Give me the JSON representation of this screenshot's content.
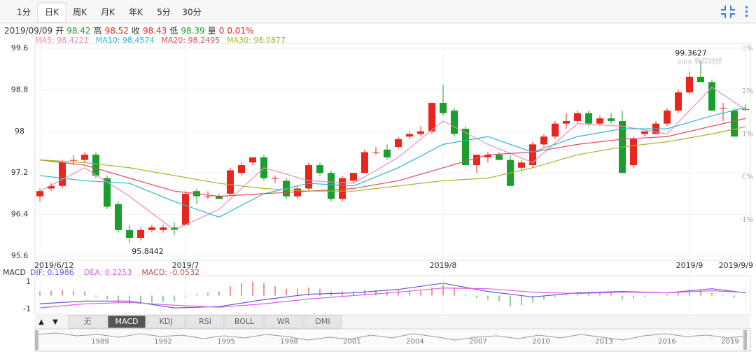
{
  "tabs": {
    "items": [
      "1分",
      "日K",
      "周K",
      "月K",
      "年K",
      "5分",
      "30分"
    ],
    "active": 1
  },
  "quote": {
    "date": "2019/09/09",
    "fields": [
      {
        "label": "开",
        "value": 98.42,
        "color": "#1a9e2c"
      },
      {
        "label": "高",
        "value": 98.52,
        "color": "#e8261d"
      },
      {
        "label": "收",
        "value": 98.43,
        "color": "#e8261d"
      },
      {
        "label": "低",
        "value": 98.39,
        "color": "#1a9e2c"
      },
      {
        "label": "量",
        "value": 0,
        "color": "#b03030"
      }
    ],
    "change": "0.01%",
    "change_color": "#e8261d"
  },
  "chart_data": {
    "type": "candlestick",
    "categories": [
      "2019/6/12",
      null,
      null,
      null,
      null,
      null,
      null,
      null,
      null,
      null,
      null,
      null,
      null,
      "2019/7",
      null,
      null,
      null,
      null,
      null,
      null,
      null,
      null,
      null,
      null,
      null,
      null,
      null,
      null,
      null,
      null,
      null,
      null,
      null,
      null,
      null,
      null,
      "2019/8",
      null,
      null,
      null,
      null,
      null,
      null,
      null,
      null,
      null,
      null,
      null,
      null,
      null,
      null,
      null,
      null,
      null,
      null,
      null,
      null,
      null,
      "2019/9",
      null,
      null,
      null,
      null,
      "2019/9/9"
    ],
    "open": [
      96.75,
      96.9,
      96.95,
      97.45,
      97.45,
      97.55,
      97.1,
      96.6,
      96.1,
      95.95,
      96.1,
      96.1,
      96.15,
      96.2,
      96.85,
      96.75,
      96.75,
      96.8,
      97.2,
      97.4,
      97.5,
      97.1,
      97.05,
      96.75,
      96.9,
      97.35,
      97.2,
      96.7,
      97.05,
      97.2,
      97.6,
      97.65,
      97.7,
      97.9,
      97.95,
      98.0,
      98.55,
      98.4,
      98.05,
      97.35,
      97.5,
      97.55,
      97.45,
      97.3,
      97.35,
      97.75,
      97.9,
      98.15,
      98.2,
      98.35,
      98.15,
      98.25,
      98.2,
      97.35,
      97.95,
      97.95,
      98.15,
      98.4,
      98.75,
      99.05,
      98.95,
      98.45,
      98.4,
      98.42
    ],
    "high": [
      96.9,
      97.0,
      97.45,
      97.55,
      97.6,
      97.6,
      97.15,
      96.65,
      96.2,
      96.15,
      96.2,
      96.2,
      96.25,
      96.85,
      96.9,
      96.85,
      96.8,
      97.3,
      97.4,
      97.5,
      97.55,
      97.15,
      97.1,
      96.95,
      97.4,
      97.4,
      97.25,
      97.15,
      97.2,
      97.65,
      97.7,
      97.75,
      97.9,
      98.0,
      98.1,
      98.55,
      98.9,
      98.45,
      98.1,
      97.55,
      97.6,
      97.6,
      97.55,
      97.45,
      97.8,
      97.95,
      98.2,
      98.35,
      98.4,
      98.4,
      98.3,
      98.35,
      98.4,
      97.9,
      98.0,
      98.2,
      98.45,
      98.8,
      99.15,
      99.3627,
      99.0,
      98.55,
      98.45,
      98.52
    ],
    "low": [
      96.65,
      96.85,
      96.9,
      97.35,
      97.4,
      97.1,
      96.5,
      96.05,
      95.8442,
      95.9,
      96.05,
      96.05,
      96.0,
      96.2,
      96.6,
      96.7,
      96.7,
      96.75,
      97.15,
      97.35,
      97.05,
      97.0,
      96.7,
      96.7,
      96.85,
      97.15,
      96.65,
      96.65,
      97.0,
      97.2,
      97.55,
      97.45,
      97.65,
      97.85,
      97.9,
      97.95,
      98.3,
      97.9,
      97.35,
      97.2,
      97.4,
      97.45,
      96.95,
      97.25,
      97.3,
      97.7,
      97.85,
      98.05,
      98.15,
      98.1,
      98.1,
      98.15,
      97.2,
      97.3,
      97.9,
      97.95,
      98.1,
      98.35,
      98.7,
      98.95,
      98.4,
      98.2,
      97.9,
      98.39
    ],
    "close": [
      96.85,
      96.95,
      97.4,
      97.45,
      97.55,
      97.15,
      96.55,
      96.1,
      95.95,
      96.1,
      96.15,
      96.15,
      96.1,
      96.8,
      96.75,
      96.75,
      96.7,
      97.25,
      97.35,
      97.5,
      97.1,
      97.1,
      96.75,
      96.9,
      97.35,
      97.2,
      96.7,
      97.1,
      97.2,
      97.6,
      97.6,
      97.5,
      97.85,
      97.95,
      98.0,
      98.55,
      98.35,
      97.95,
      97.35,
      97.55,
      97.55,
      97.45,
      96.95,
      97.4,
      97.75,
      97.9,
      98.15,
      98.2,
      98.35,
      98.15,
      98.25,
      98.2,
      97.2,
      97.85,
      98.0,
      98.15,
      98.4,
      98.75,
      99.05,
      98.95,
      98.4,
      98.45,
      97.9,
      98.43
    ],
    "up_color": "#e8261d",
    "down_color": "#1a9e2c",
    "ylim": [
      95.6,
      99.6
    ],
    "yticks": [
      95.6,
      96.4,
      97.2,
      98,
      98.8,
      99.6
    ],
    "y2lim": [
      -1.85,
      3
    ],
    "y2ticks": [
      {
        "value": -1,
        "label": "-1%"
      },
      {
        "value": 0,
        "label": "0%"
      },
      {
        "value": 1,
        "label": "1%"
      },
      {
        "value": 2,
        "label": "2%"
      },
      {
        "value": 3,
        "label": "3%"
      }
    ],
    "grid": true,
    "series": [
      {
        "name": "MA5",
        "legend": "MA5: 98.4221",
        "color": "#f08cb4",
        "x": [
          0,
          4,
          8,
          12,
          16,
          20,
          24,
          28,
          32,
          36,
          40,
          44,
          48,
          52,
          56,
          60,
          63
        ],
        "values": [
          96.85,
          97.3,
          96.75,
          96.1,
          96.5,
          97.3,
          97.05,
          97.0,
          97.5,
          98.2,
          97.75,
          97.4,
          98.15,
          98.1,
          97.95,
          98.85,
          98.42
        ]
      },
      {
        "name": "MA10",
        "legend": "MA10: 98.4574",
        "color": "#29b6d8",
        "x": [
          0,
          4,
          8,
          12,
          16,
          20,
          24,
          28,
          32,
          36,
          40,
          44,
          48,
          52,
          56,
          60,
          63
        ],
        "values": [
          97.15,
          97.05,
          97.0,
          96.65,
          96.35,
          96.8,
          97.0,
          96.95,
          97.3,
          97.75,
          97.9,
          97.6,
          97.9,
          98.05,
          98.05,
          98.3,
          98.46
        ]
      },
      {
        "name": "MA20",
        "legend": "MA20: 98.2495",
        "color": "#e04a5a",
        "x": [
          0,
          4,
          8,
          12,
          16,
          20,
          24,
          28,
          32,
          36,
          40,
          44,
          48,
          52,
          56,
          60,
          63
        ],
        "values": [
          97.45,
          97.35,
          97.1,
          96.85,
          96.75,
          96.8,
          96.85,
          96.9,
          97.05,
          97.3,
          97.55,
          97.6,
          97.75,
          97.85,
          97.9,
          98.1,
          98.25
        ]
      },
      {
        "name": "MA30",
        "legend": "MA30: 98.0877",
        "color": "#a2b52c",
        "x": [
          0,
          4,
          8,
          12,
          16,
          20,
          24,
          28,
          32,
          36,
          40,
          44,
          48,
          52,
          56,
          60,
          63
        ],
        "values": [
          97.45,
          97.4,
          97.3,
          97.15,
          97.0,
          96.9,
          96.85,
          96.85,
          96.95,
          97.05,
          97.1,
          97.3,
          97.55,
          97.7,
          97.8,
          97.95,
          98.09
        ]
      }
    ],
    "max_label": 99.3627,
    "min_label": 95.8442,
    "watermark": "sina 新浪财经"
  },
  "macd": {
    "type": "macd",
    "title": "MACD",
    "macd_legend": "MACD: -0.0532",
    "macd_color": "#c0504d",
    "ylim": [
      -1.3,
      1.35
    ],
    "yticks": [
      -1,
      1
    ],
    "histogram": [
      0.3,
      0.35,
      0.4,
      0.35,
      0.3,
      -0.1,
      -0.3,
      -0.5,
      -0.6,
      -0.6,
      -0.5,
      -0.45,
      -0.4,
      -0.1,
      0.1,
      0.2,
      0.3,
      0.7,
      0.9,
      1.0,
      0.9,
      0.7,
      0.5,
      0.5,
      0.6,
      0.5,
      0.3,
      0.3,
      0.3,
      0.4,
      0.4,
      0.3,
      0.4,
      0.4,
      0.35,
      0.6,
      0.8,
      0.6,
      0.1,
      -0.2,
      -0.3,
      -0.4,
      -0.8,
      -0.7,
      -0.5,
      -0.3,
      -0.1,
      0.05,
      0.1,
      0.15,
      0.2,
      0.2,
      -0.3,
      -0.2,
      -0.1,
      0.0,
      0.1,
      0.25,
      0.4,
      0.4,
      0.2,
      0.05,
      -0.15,
      -0.0532
    ],
    "up_color": "#e8261d",
    "down_color": "#1a9e2c",
    "series": [
      {
        "name": "DIF",
        "legend": "DIF: 0.1986",
        "color": "#5b5bd6",
        "x": [
          0,
          4,
          8,
          12,
          16,
          20,
          24,
          28,
          32,
          36,
          40,
          44,
          48,
          52,
          56,
          60,
          63
        ],
        "values": [
          -0.6,
          -0.4,
          -0.4,
          -0.9,
          -0.8,
          -0.3,
          0.1,
          0.2,
          0.45,
          0.9,
          0.3,
          -0.1,
          0.2,
          0.3,
          0.2,
          0.5,
          0.1986
        ]
      },
      {
        "name": "DEA",
        "legend": "DEA: 0.2253",
        "color": "#e05be0",
        "x": [
          0,
          4,
          8,
          12,
          16,
          20,
          24,
          28,
          32,
          36,
          40,
          44,
          48,
          52,
          56,
          60,
          63
        ],
        "values": [
          -0.9,
          -0.6,
          -0.5,
          -0.7,
          -0.85,
          -0.6,
          -0.25,
          0.0,
          0.25,
          0.55,
          0.5,
          0.25,
          0.15,
          0.25,
          0.2,
          0.35,
          0.2253
        ]
      }
    ]
  },
  "indicator_tabs": {
    "arrows": [
      "▲",
      "▼"
    ],
    "items": [
      "无",
      "MACD",
      "KDJ",
      "RSI",
      "BOLL",
      "WR",
      "DMI"
    ],
    "active": 1
  },
  "navigator": {
    "years": [
      1989,
      1992,
      1995,
      1998,
      2001,
      2004,
      2007,
      2010,
      2013,
      2016,
      2019
    ]
  }
}
